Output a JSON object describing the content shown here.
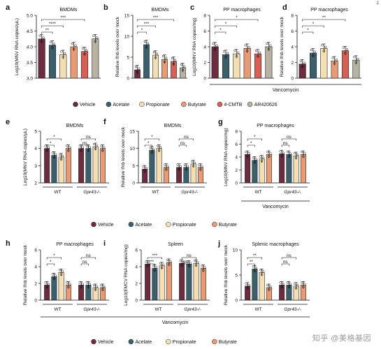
{
  "page_number": "2",
  "watermark": "知乎 @美格基因",
  "colors": {
    "Vehicle": "#6c2b3e",
    "Acetate": "#3b5f6b",
    "Propionate": "#f3dfb2",
    "Butyrate": "#e79a73",
    "4-CMTB": "#d65f56",
    "AR420626": "#b8b2a2"
  },
  "legends": [
    {
      "items": [
        "Vehicle",
        "Acetate",
        "Propionate",
        "Butyrate",
        "4-CMTB",
        "AR420626"
      ]
    },
    {
      "items": [
        "Vehicle",
        "Acetate",
        "Propionate",
        "Butyrate"
      ]
    },
    {
      "items": [
        "Vehicle",
        "Acetate",
        "Propionate",
        "Butyrate"
      ]
    }
  ],
  "group_labels": {
    "vancomycin_top": "Vancomycin",
    "vancomycin_mid": "Vancomycin",
    "vancomycin_bottom": "Vancomycin"
  },
  "chart_data": [
    {
      "type": "bar",
      "letter": "a",
      "title": "BMDMs",
      "ylabel": "Log10(MNV RNA copies/μL)",
      "ylim": [
        3.0,
        5.0
      ],
      "yticks": [
        "3.0",
        "3.5",
        "4.0",
        "4.5",
        "5.0"
      ],
      "categories": [
        "Vehicle",
        "Acetate",
        "Propionate",
        "Butyrate",
        "4-CMTB",
        "AR420626"
      ],
      "values": [
        4.25,
        4.05,
        3.75,
        4.0,
        3.85,
        4.25
      ],
      "significance": [
        "**",
        "****",
        "***"
      ]
    },
    {
      "type": "bar",
      "letter": "b",
      "title": "BMDMs",
      "ylabel": "Relative Ifnb levels over mock",
      "ylim": [
        0,
        15
      ],
      "yticks": [
        "0",
        "5",
        "10",
        "15"
      ],
      "categories": [
        "Vehicle",
        "Acetate",
        "Propionate",
        "Butyrate",
        "4-CMTB",
        "AR420626"
      ],
      "values": [
        2.0,
        8.0,
        5.5,
        4.5,
        4.0,
        2.5
      ],
      "significance": [
        "*",
        "***",
        "***"
      ]
    },
    {
      "type": "bar",
      "letter": "c",
      "title": "PP macrophages",
      "ylabel": "Log10(MNV RNA copies/mg)",
      "ylim": [
        0,
        8
      ],
      "yticks": [
        "0",
        "2",
        "4",
        "6",
        "8"
      ],
      "categories": [
        "Vehicle",
        "Acetate",
        "Propionate",
        "Butyrate",
        "4-CMTB",
        "AR420626"
      ],
      "values": [
        4.0,
        3.0,
        3.1,
        3.8,
        3.1,
        4.0
      ],
      "significance": [
        "*",
        "*",
        "*"
      ]
    },
    {
      "type": "bar",
      "letter": "d",
      "title": "PP macrophages",
      "ylabel": "Relative Ifnb levels over mock",
      "ylim": [
        0,
        8
      ],
      "yticks": [
        "0",
        "2",
        "4",
        "6",
        "8"
      ],
      "categories": [
        "Vehicle",
        "Acetate",
        "Propionate",
        "Butyrate",
        "4-CMTB",
        "AR420626"
      ],
      "values": [
        1.8,
        3.2,
        3.8,
        2.2,
        3.5,
        2.3
      ],
      "significance": [
        "*",
        "*",
        "**"
      ]
    },
    {
      "type": "bar",
      "letter": "e",
      "title": "BMDMs",
      "ylabel": "Log10(MNV RNA copies/μL)",
      "ylim": [
        2.0,
        5.0
      ],
      "yticks": [
        "2",
        "3",
        "4",
        "5"
      ],
      "groups": [
        "WT",
        "Gpr43-/-"
      ],
      "categories": [
        "Vehicle",
        "Acetate",
        "Propionate",
        "Butyrate"
      ],
      "series_values": [
        [
          4.0,
          3.6,
          3.5,
          4.0
        ],
        [
          4.0,
          4.0,
          4.1,
          4.0
        ]
      ],
      "significance": [
        "*",
        "*",
        "ns",
        "ns"
      ]
    },
    {
      "type": "bar",
      "letter": "f",
      "title": "BMDMs",
      "ylabel": "Relative Ifnb levels over mock",
      "ylim": [
        0,
        15
      ],
      "yticks": [
        "0",
        "5",
        "10",
        "15"
      ],
      "groups": [
        "WT",
        "Gpr43-/-"
      ],
      "categories": [
        "Vehicle",
        "Acetate",
        "Propionate",
        "Butyrate"
      ],
      "series_values": [
        [
          4.0,
          9.5,
          10.0,
          4.5
        ],
        [
          4.5,
          4.5,
          5.5,
          4.5
        ]
      ],
      "significance": [
        "*",
        "*",
        "ns",
        "ns"
      ]
    },
    {
      "type": "bar",
      "letter": "g",
      "title": "PP macrophages",
      "ylabel": "Log10(MNV RNA copies/mg)",
      "ylim": [
        0,
        8
      ],
      "yticks": [
        "0",
        "2",
        "4",
        "6",
        "8"
      ],
      "groups": [
        "WT",
        "Gpr43-/-"
      ],
      "categories": [
        "Vehicle",
        "Acetate",
        "Propionate",
        "Butyrate"
      ],
      "series_values": [
        [
          4.4,
          3.5,
          3.7,
          4.4
        ],
        [
          4.5,
          4.4,
          4.2,
          4.4
        ]
      ],
      "significance": [
        "*",
        "*",
        "ns",
        "ns"
      ]
    },
    {
      "type": "bar",
      "letter": "h",
      "title": "PP macrophages",
      "ylabel": "Relative Ifnb levels over mock",
      "ylim": [
        0,
        6
      ],
      "yticks": [
        "0",
        "2",
        "4",
        "6"
      ],
      "groups": [
        "WT",
        "Gpr43-/-"
      ],
      "categories": [
        "Vehicle",
        "Acetate",
        "Propionate",
        "Butyrate"
      ],
      "series_values": [
        [
          1.8,
          2.8,
          3.3,
          1.8
        ],
        [
          1.8,
          1.8,
          1.5,
          1.5
        ]
      ],
      "significance": [
        "*",
        "*",
        "ns",
        "ns"
      ]
    },
    {
      "type": "bar",
      "letter": "i",
      "title": "Spleen",
      "ylabel": "Log10(EMCV RNA copies/mg)",
      "ylim": [
        0,
        6
      ],
      "yticks": [
        "0",
        "2",
        "4",
        "6"
      ],
      "groups": [
        "WT",
        "Gpr43-/-"
      ],
      "categories": [
        "Vehicle",
        "Acetate",
        "Propionate",
        "Butyrate"
      ],
      "series_values": [
        [
          4.3,
          3.8,
          4.1,
          4.5
        ],
        [
          4.4,
          4.3,
          4.4,
          3.8
        ]
      ],
      "significance": [
        "***",
        "***",
        "ns",
        "ns"
      ]
    },
    {
      "type": "bar",
      "letter": "j",
      "title": "Splenic macrophages",
      "ylabel": "Relative Ifnb levels over mock",
      "ylim": [
        0,
        10
      ],
      "yticks": [
        "0",
        "5",
        "10"
      ],
      "groups": [
        "WT",
        "Gpr43-/-"
      ],
      "categories": [
        "Vehicle",
        "Acetate",
        "Propionate",
        "Butyrate"
      ],
      "series_values": [
        [
          2.8,
          6.2,
          5.5,
          2.5
        ],
        [
          3.0,
          3.0,
          2.8,
          3.0
        ]
      ],
      "significance": [
        "**",
        "**",
        "ns",
        "ns"
      ]
    }
  ]
}
